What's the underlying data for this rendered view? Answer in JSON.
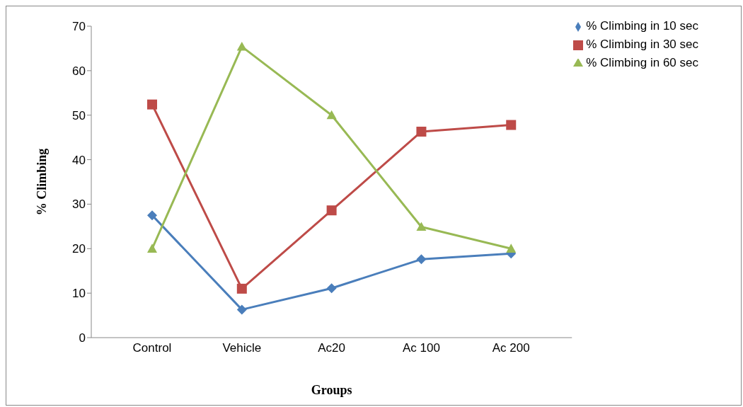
{
  "chart_data": {
    "type": "line",
    "xlabel": "Groups",
    "ylabel": "% Climbing",
    "categories": [
      "Control",
      "Vehicle",
      "Ac20",
      "Ac 100",
      "Ac 200"
    ],
    "series": [
      {
        "name": "% Climbing in 10 sec",
        "color": "#4a7ebb",
        "marker": "diamond",
        "values": [
          27.5,
          6.3,
          11.1,
          17.6,
          18.9
        ]
      },
      {
        "name": "% Climbing in 30 sec",
        "color": "#be4b48",
        "marker": "square",
        "values": [
          52.4,
          11.0,
          28.6,
          46.3,
          47.8
        ]
      },
      {
        "name": "% Climbing in 60 sec",
        "color": "#98b954",
        "marker": "triangle",
        "values": [
          20.0,
          65.4,
          50.0,
          24.9,
          20.0
        ]
      }
    ],
    "ylim": [
      0,
      70
    ],
    "yticks": [
      0,
      10,
      20,
      30,
      40,
      50,
      60,
      70
    ],
    "grid": false,
    "legend": "top right"
  }
}
